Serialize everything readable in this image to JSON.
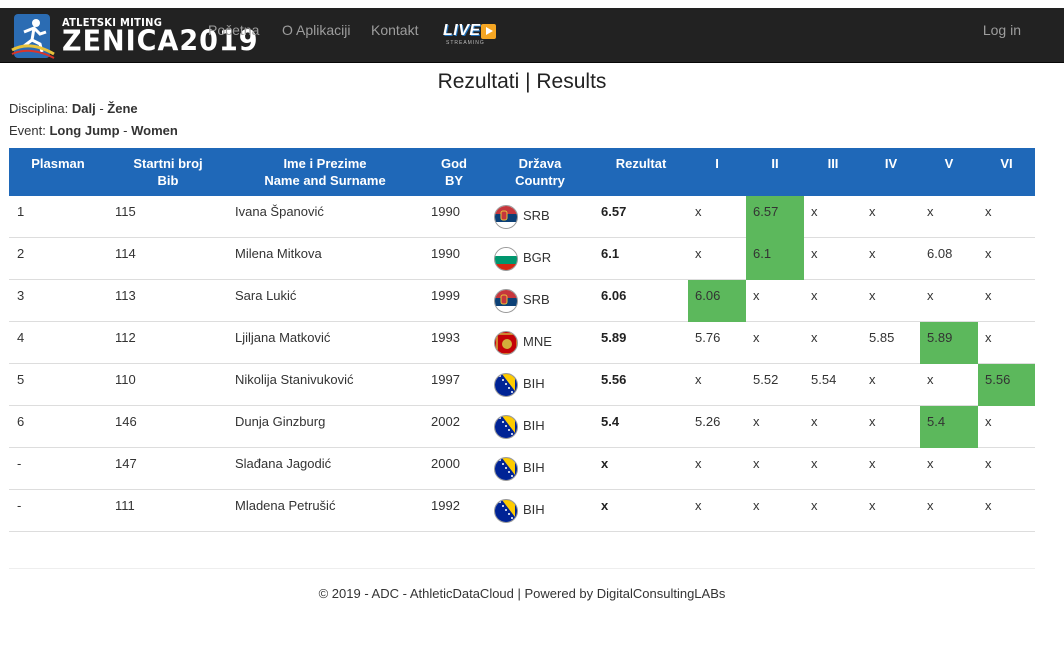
{
  "brand": {
    "small": "ATLETSKI MITING",
    "big": "ZENICA2019"
  },
  "nav": [
    {
      "label": "Početna"
    },
    {
      "label": "O Aplikaciji"
    },
    {
      "label": "Kontakt"
    }
  ],
  "live_badge": {
    "text": "LIVE",
    "sub": "STREAMING"
  },
  "login": "Log in",
  "page_title": "Rezultati | Results",
  "discipline": {
    "label": "Disciplina:",
    "value1": "Dalj",
    "sep": " - ",
    "value2": "Žene"
  },
  "event": {
    "label": "Event:",
    "value1": "Long Jump",
    "sep": " - ",
    "value2": "Women"
  },
  "columns": {
    "place": "Plasman",
    "bib1": "Startni broj",
    "bib2": "Bib",
    "name1": "Ime i Prezime",
    "name2": "Name and Surname",
    "year1": "God",
    "year2": "BY",
    "country1": "Država",
    "country2": "Country",
    "result": "Rezultat",
    "a1": "I",
    "a2": "II",
    "a3": "III",
    "a4": "IV",
    "a5": "V",
    "a6": "VI"
  },
  "accent_color": "#1f68b8",
  "best_color": "#5cb85c",
  "rows": [
    {
      "place": "1",
      "bib": "115",
      "name": "Ivana Španović",
      "year": "1990",
      "flag": "srb",
      "country": "SRB",
      "result": "6.57",
      "attempts": [
        "x",
        "6.57",
        "x",
        "x",
        "x",
        "x"
      ],
      "best": 1
    },
    {
      "place": "2",
      "bib": "114",
      "name": "Milena Mitkova",
      "year": "1990",
      "flag": "bgr",
      "country": "BGR",
      "result": "6.1",
      "attempts": [
        "x",
        "6.1",
        "x",
        "x",
        "6.08",
        "x"
      ],
      "best": 1
    },
    {
      "place": "3",
      "bib": "113",
      "name": "Sara Lukić",
      "year": "1999",
      "flag": "srb",
      "country": "SRB",
      "result": "6.06",
      "attempts": [
        "6.06",
        "x",
        "x",
        "x",
        "x",
        "x"
      ],
      "best": 0
    },
    {
      "place": "4",
      "bib": "112",
      "name": "Ljiljana Matković",
      "year": "1993",
      "flag": "mne",
      "country": "MNE",
      "result": "5.89",
      "attempts": [
        "5.76",
        "x",
        "x",
        "5.85",
        "5.89",
        "x"
      ],
      "best": 4
    },
    {
      "place": "5",
      "bib": "110",
      "name": "Nikolija Stanivuković",
      "year": "1997",
      "flag": "bih",
      "country": "BIH",
      "result": "5.56",
      "attempts": [
        "x",
        "5.52",
        "5.54",
        "x",
        "x",
        "5.56"
      ],
      "best": 5
    },
    {
      "place": "6",
      "bib": "146",
      "name": "Dunja Ginzburg",
      "year": "2002",
      "flag": "bih",
      "country": "BIH",
      "result": "5.4",
      "attempts": [
        "5.26",
        "x",
        "x",
        "x",
        "5.4",
        "x"
      ],
      "best": 4
    },
    {
      "place": "-",
      "bib": "147",
      "name": "Slađana Jagodić",
      "year": "2000",
      "flag": "bih",
      "country": "BIH",
      "result": "x",
      "attempts": [
        "x",
        "x",
        "x",
        "x",
        "x",
        "x"
      ],
      "best": -1
    },
    {
      "place": "-",
      "bib": "111",
      "name": "Mladena Petrušić",
      "year": "1992",
      "flag": "bih",
      "country": "BIH",
      "result": "x",
      "attempts": [
        "x",
        "x",
        "x",
        "x",
        "x",
        "x"
      ],
      "best": -1
    }
  ],
  "footer": "© 2019 - ADC - AthleticDataCloud | Powered by DigitalConsultingLABs"
}
